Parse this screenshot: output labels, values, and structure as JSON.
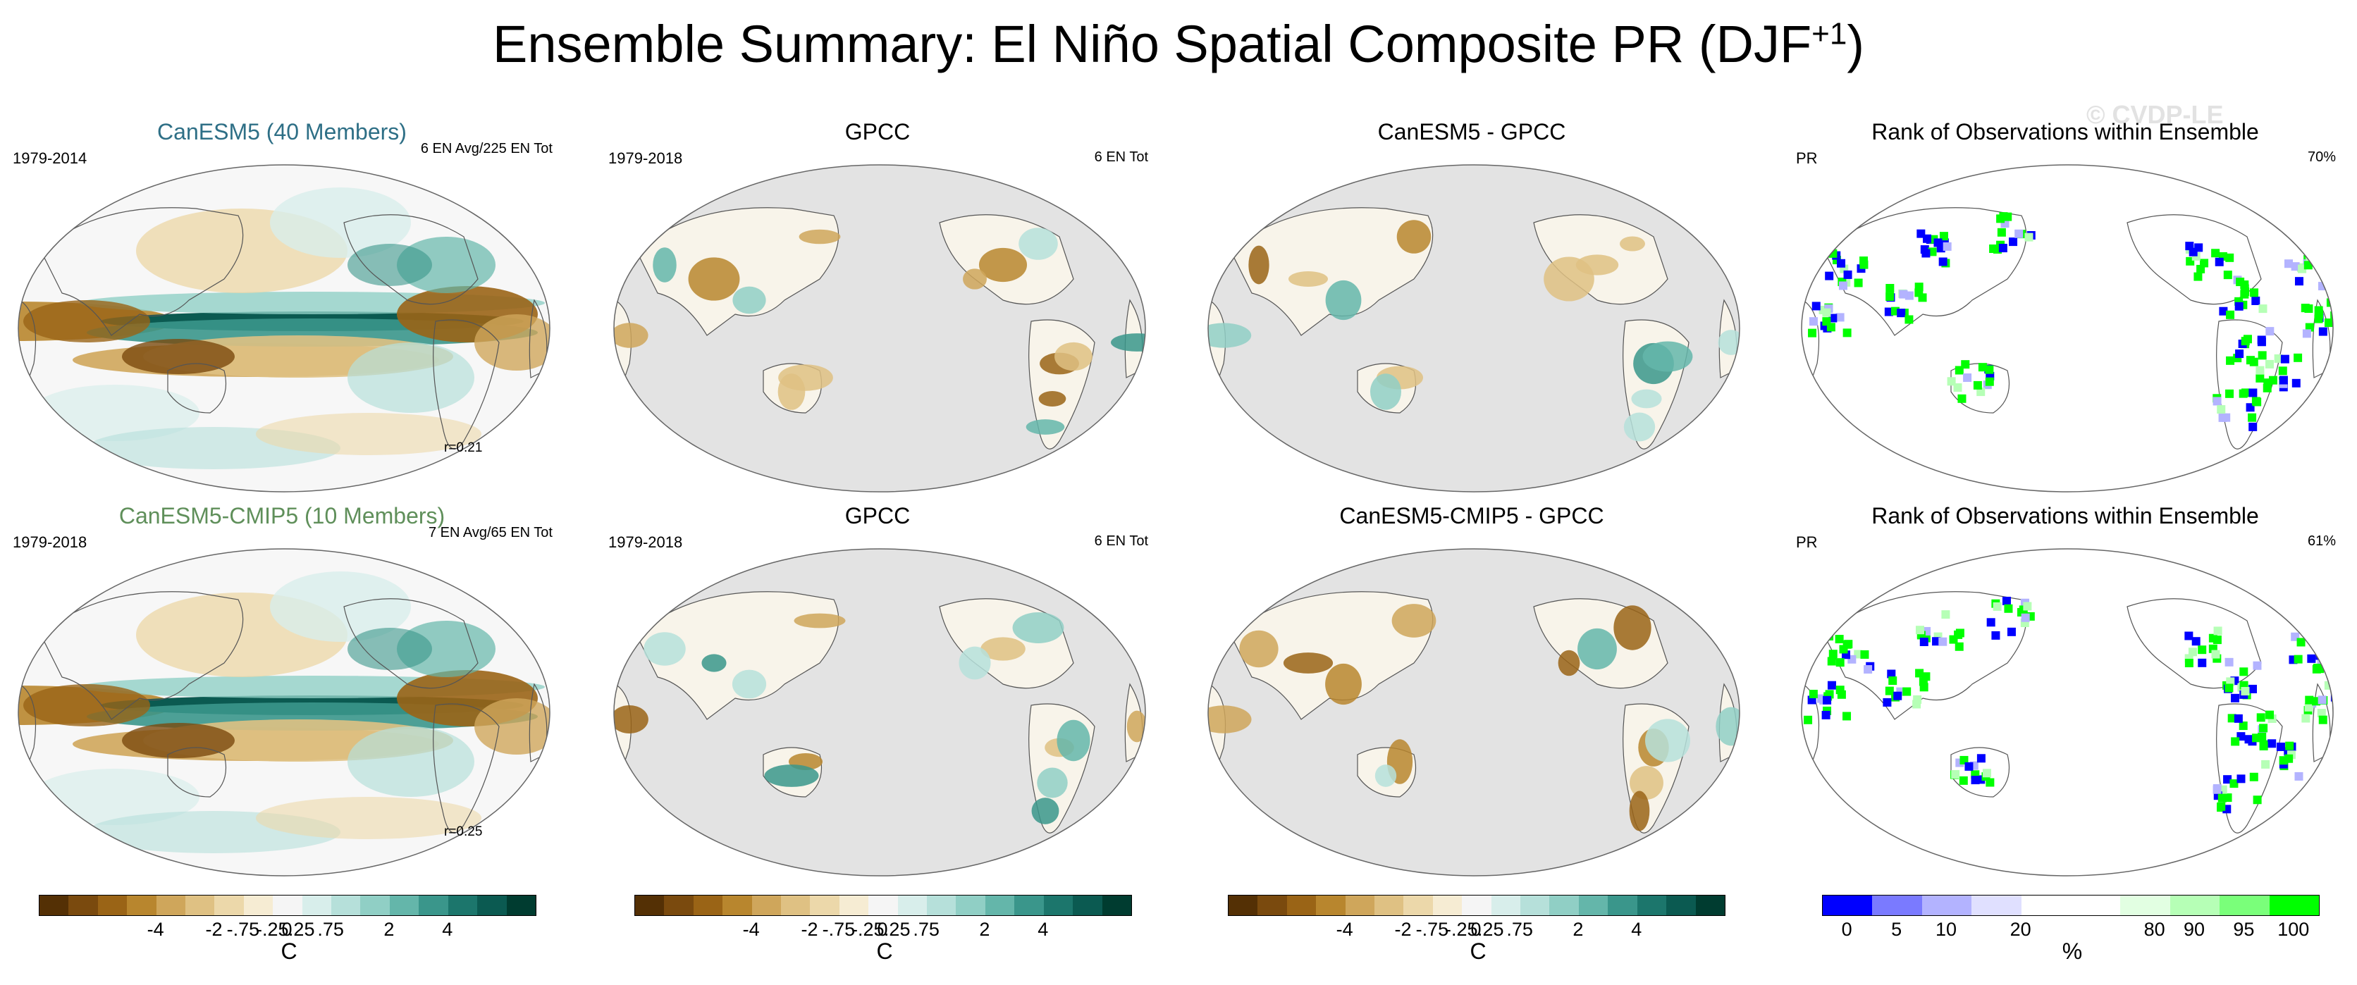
{
  "figure": {
    "title": "Ensemble Summary: El Niño Spatial Composite PR (DJF",
    "title_superscript": "+1",
    "title_close": ")",
    "watermark": "© CVDP-LE"
  },
  "rows": [
    {
      "panels": [
        {
          "title": "CanESM5 (40 Members)",
          "title_color": "#2e6f86",
          "left_label": "1979-2014",
          "right_label": "6 EN Avg/225 EN Tot",
          "corr": "r=0.21",
          "kind": "model"
        },
        {
          "title": "GPCC",
          "left_label": "1979-2018",
          "right_label": "6 EN Tot",
          "kind": "obs"
        },
        {
          "title": "CanESM5 - GPCC",
          "kind": "diff"
        },
        {
          "title": "Rank of Observations within Ensemble",
          "left_label": "PR",
          "right_label": "70%",
          "kind": "rank"
        }
      ]
    },
    {
      "panels": [
        {
          "title": "CanESM5-CMIP5 (10 Members)",
          "title_color": "#5f8f5a",
          "left_label": "1979-2018",
          "right_label": "7 EN Avg/65 EN Tot",
          "corr": "r=0.25",
          "kind": "model"
        },
        {
          "title": "GPCC",
          "left_label": "1979-2018",
          "right_label": "6 EN Tot",
          "kind": "obs"
        },
        {
          "title": "CanESM5-CMIP5 - GPCC",
          "kind": "diff"
        },
        {
          "title": "Rank of Observations within Ensemble",
          "left_label": "PR",
          "right_label": "61%",
          "kind": "rank"
        }
      ]
    }
  ],
  "colorbars": {
    "anomaly": {
      "unit": "C",
      "tick_labels": [
        "-4",
        "-2",
        "-.75",
        "-.25",
        "0",
        ".25",
        ".75",
        "2",
        "4"
      ],
      "colors": [
        "#543005",
        "#7a4a0e",
        "#9a6416",
        "#b8862e",
        "#cfa65b",
        "#dfc183",
        "#ecd8aa",
        "#f6ecd3",
        "#f5f5f5",
        "#d8eeeb",
        "#b6e0da",
        "#90cfc5",
        "#64b6aa",
        "#3a968b",
        "#1c766c",
        "#0b5a51",
        "#003c30"
      ]
    },
    "rank": {
      "unit": "%",
      "tick_labels": [
        "0",
        "5",
        "10",
        "20",
        "80",
        "90",
        "95",
        "100"
      ],
      "colors": [
        "#0000ff",
        "#7a7aff",
        "#b3b3ff",
        "#e0e0ff",
        "#ffffff",
        "#ffffff",
        "#e2ffe2",
        "#b6ffb6",
        "#7aff7a",
        "#00ff00"
      ]
    }
  }
}
